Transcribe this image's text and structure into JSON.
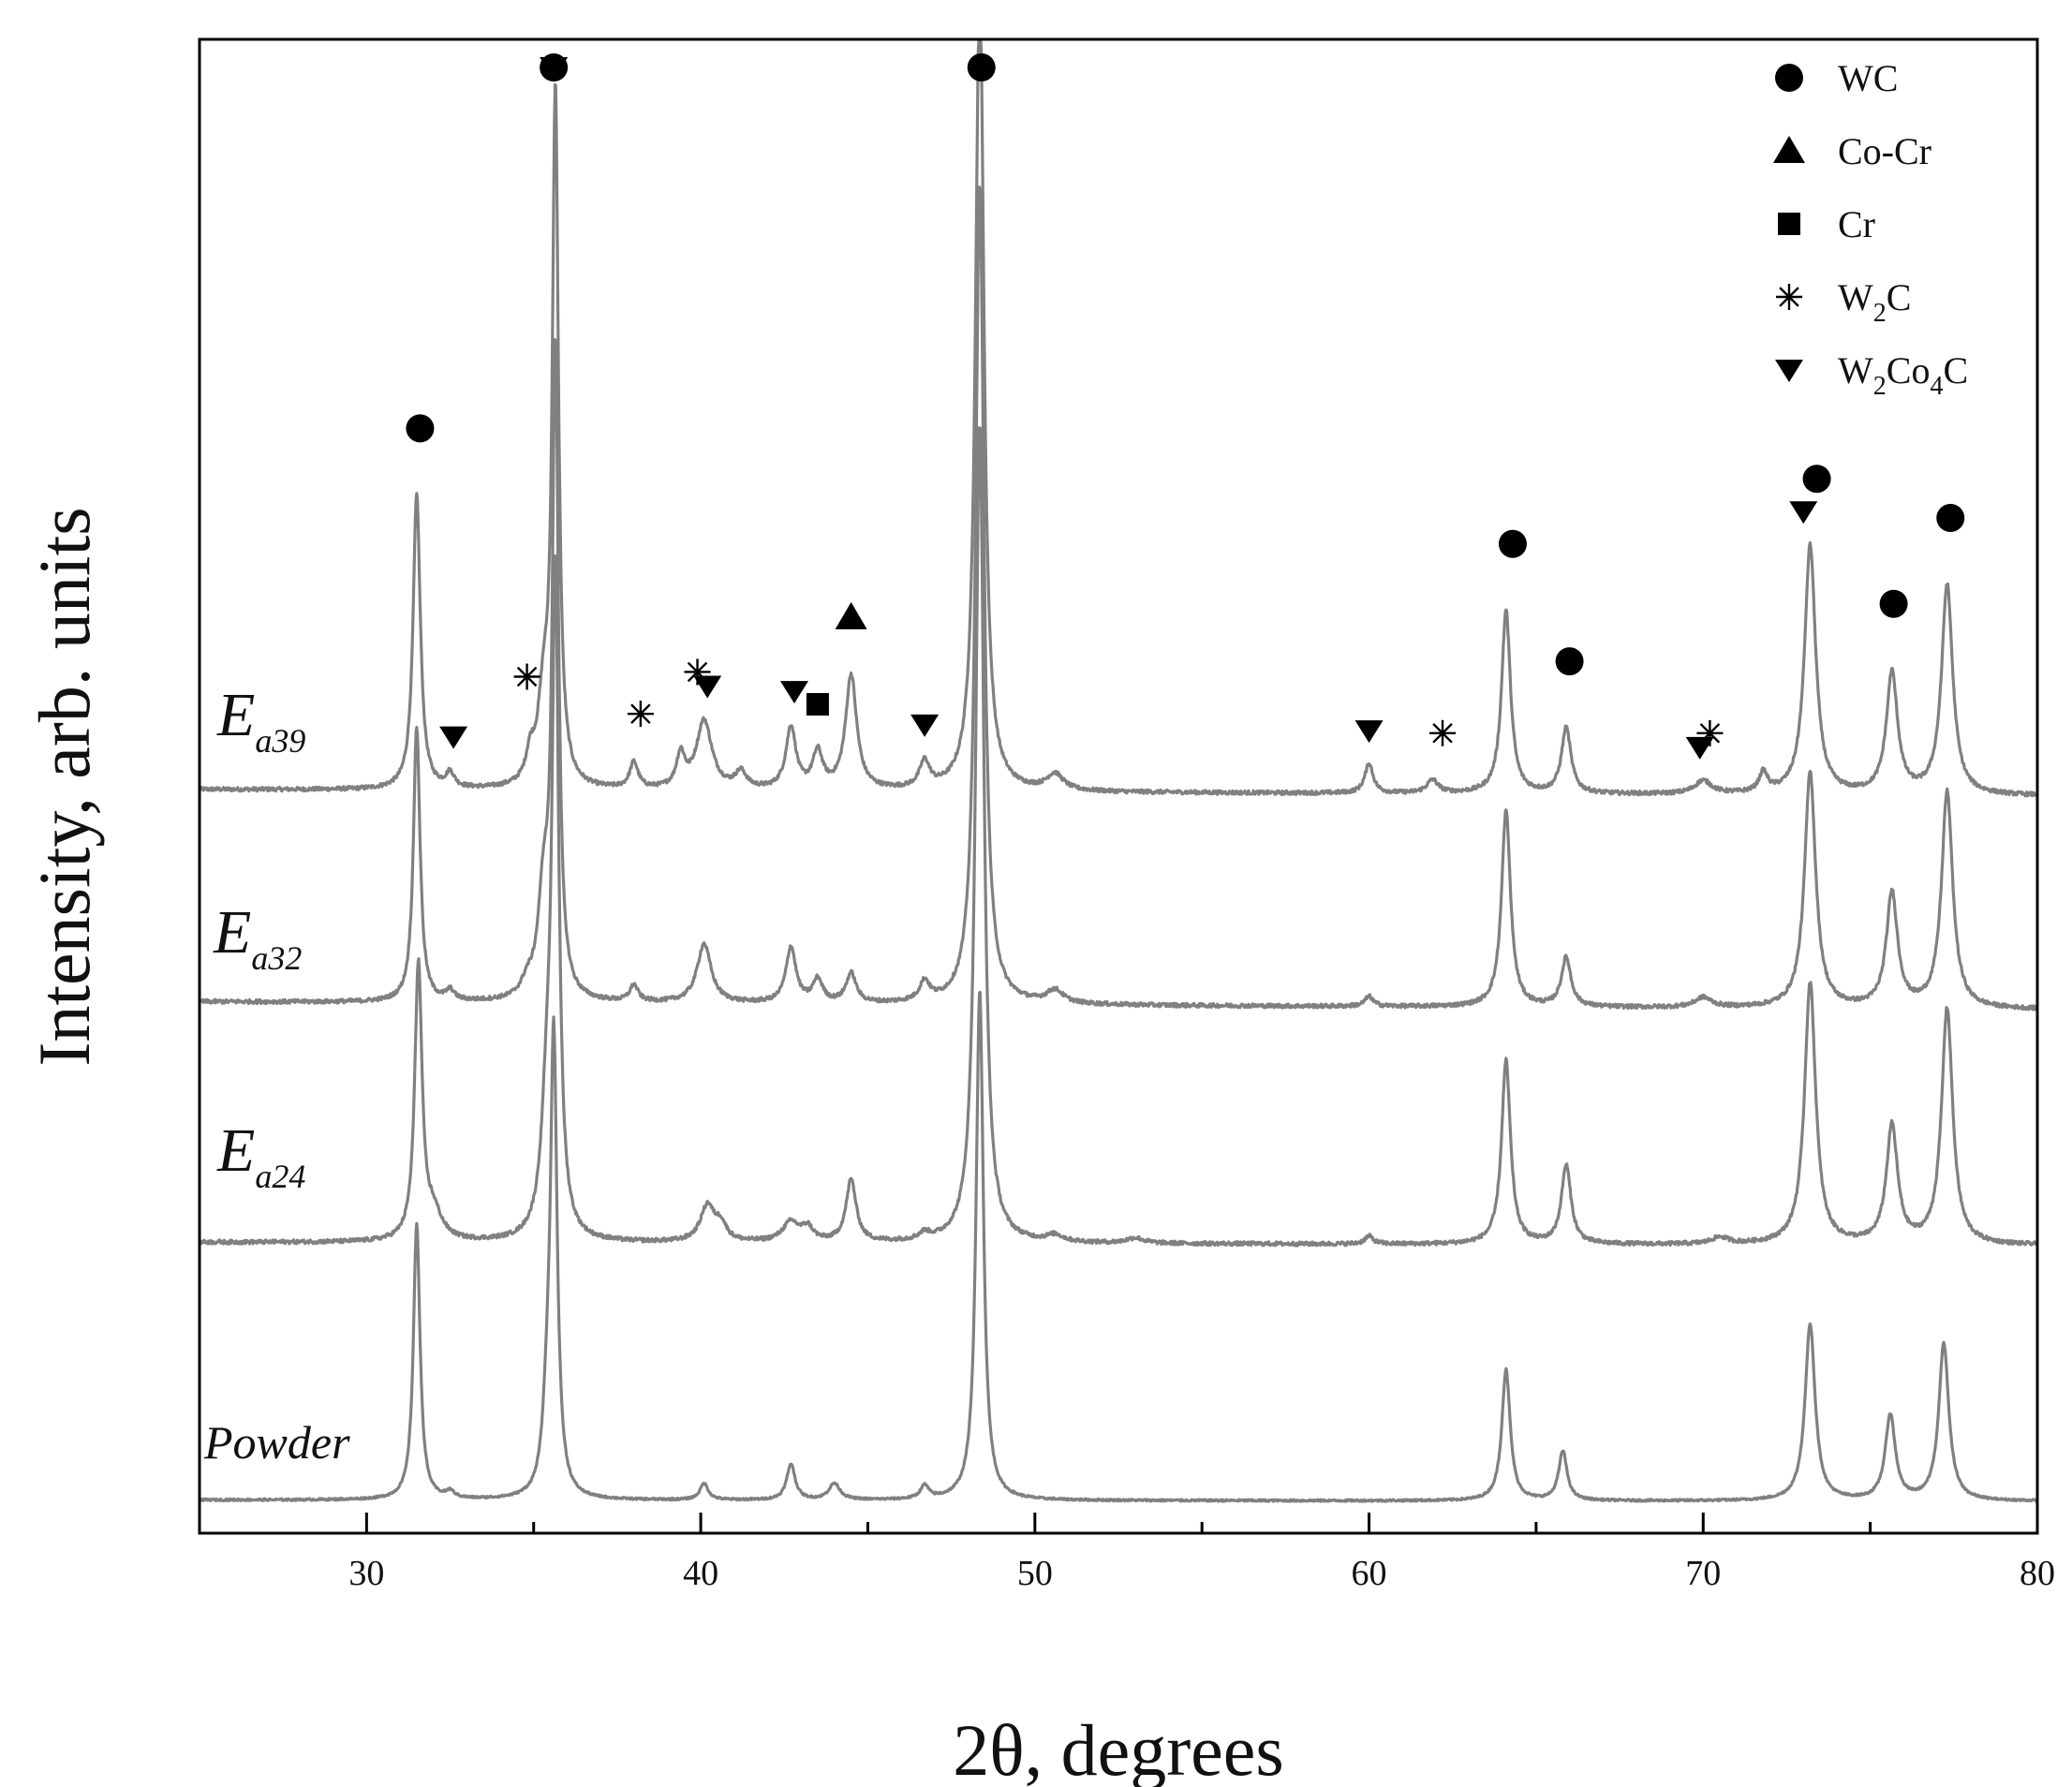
{
  "chart_data": {
    "type": "line",
    "title": "",
    "xlabel": "2θ, degrees",
    "ylabel": "Intensity, arb. units",
    "xlim": [
      25,
      80
    ],
    "xticks": [
      30,
      40,
      50,
      60,
      70,
      80
    ],
    "x_tick_labels": [
      "30",
      "40",
      "50",
      "60",
      "70",
      "80"
    ],
    "y_ticks_shown": false,
    "grid": false,
    "line_color": "#808080",
    "legend_position": "top-right",
    "legend": [
      {
        "phase": "WC",
        "marker": "circle",
        "sub": ""
      },
      {
        "phase": "Co-Cr",
        "marker": "triangle-up",
        "sub": ""
      },
      {
        "phase": "Cr",
        "marker": "square",
        "sub": ""
      },
      {
        "phase": "W2C",
        "marker": "asterisk",
        "base": "W",
        "sub": "2",
        "tail": "C"
      },
      {
        "phase": "W2Co4C",
        "marker": "triangle-down",
        "base": "W",
        "sub": "2",
        "mid": "Co",
        "sub2": "4",
        "tail": "C"
      }
    ],
    "series": [
      {
        "name": "E a39",
        "label_main": "E",
        "label_sub": "a39",
        "baseline": 2,
        "noise": 0.03,
        "peaks": [
          [
            31.5,
            4.5,
            0.13
          ],
          [
            32.5,
            0.22,
            0.15
          ],
          [
            34.9,
            0.4,
            0.15
          ],
          [
            35.65,
            10.5,
            0.11
          ],
          [
            35.3,
            1.2,
            0.2
          ],
          [
            38.0,
            0.4,
            0.15
          ],
          [
            39.4,
            0.5,
            0.15
          ],
          [
            40.1,
            1.05,
            0.28
          ],
          [
            41.2,
            0.25,
            0.2
          ],
          [
            42.7,
            0.95,
            0.18
          ],
          [
            43.5,
            0.55,
            0.18
          ],
          [
            44.5,
            1.75,
            0.2
          ],
          [
            46.7,
            0.4,
            0.18
          ],
          [
            48.35,
            12.5,
            0.15
          ],
          [
            50.6,
            0.25,
            0.3
          ],
          [
            60.0,
            0.45,
            0.15
          ],
          [
            61.9,
            0.2,
            0.2
          ],
          [
            64.1,
            2.8,
            0.16
          ],
          [
            65.9,
            1.0,
            0.17
          ],
          [
            70.0,
            0.2,
            0.3
          ],
          [
            71.8,
            0.3,
            0.15
          ],
          [
            73.2,
            3.8,
            0.2
          ],
          [
            75.65,
            1.85,
            0.2
          ],
          [
            77.3,
            3.2,
            0.2
          ]
        ]
      },
      {
        "name": "E a32",
        "label_main": "E",
        "label_sub": "a32",
        "baseline": 1,
        "noise": 0.03,
        "peaks": [
          [
            31.5,
            4.2,
            0.12
          ],
          [
            32.5,
            0.15,
            0.15
          ],
          [
            34.8,
            0.2,
            0.2
          ],
          [
            35.65,
            9.8,
            0.11
          ],
          [
            35.3,
            1.5,
            0.2
          ],
          [
            38.0,
            0.25,
            0.15
          ],
          [
            40.1,
            0.9,
            0.25
          ],
          [
            42.7,
            0.85,
            0.18
          ],
          [
            43.5,
            0.35,
            0.18
          ],
          [
            44.5,
            0.45,
            0.18
          ],
          [
            46.7,
            0.3,
            0.18
          ],
          [
            48.35,
            12.5,
            0.15
          ],
          [
            50.6,
            0.2,
            0.3
          ],
          [
            60.0,
            0.15,
            0.15
          ],
          [
            64.1,
            3.0,
            0.16
          ],
          [
            65.9,
            0.75,
            0.17
          ],
          [
            70.0,
            0.15,
            0.3
          ],
          [
            73.2,
            3.6,
            0.2
          ],
          [
            75.65,
            1.75,
            0.2
          ],
          [
            77.3,
            3.3,
            0.2
          ]
        ]
      },
      {
        "name": "E a24",
        "label_main": "E",
        "label_sub": "a24",
        "baseline": 0,
        "noise": 0.03,
        "peaks": [
          [
            31.55,
            4.2,
            0.13
          ],
          [
            32.0,
            0.4,
            0.3
          ],
          [
            35.65,
            9.8,
            0.12
          ],
          [
            35.4,
            1.8,
            0.2
          ],
          [
            40.2,
            0.55,
            0.25
          ],
          [
            40.6,
            0.25,
            0.2
          ],
          [
            42.7,
            0.3,
            0.3
          ],
          [
            43.2,
            0.2,
            0.2
          ],
          [
            44.5,
            0.95,
            0.18
          ],
          [
            46.7,
            0.1,
            0.2
          ],
          [
            48.35,
            12.5,
            0.15
          ],
          [
            50.6,
            0.1,
            0.3
          ],
          [
            53.0,
            0.08,
            0.3
          ],
          [
            60.0,
            0.12,
            0.15
          ],
          [
            64.1,
            2.8,
            0.16
          ],
          [
            65.9,
            1.2,
            0.17
          ],
          [
            70.5,
            0.1,
            0.3
          ],
          [
            73.2,
            4.0,
            0.2
          ],
          [
            75.65,
            1.8,
            0.2
          ],
          [
            77.3,
            3.6,
            0.2
          ]
        ]
      },
      {
        "name": "Powder",
        "label_main": "Powder",
        "label_sub": "",
        "baseline": -1,
        "noise": 0.015,
        "peaks": [
          [
            31.5,
            4.2,
            0.12
          ],
          [
            32.5,
            0.1,
            0.15
          ],
          [
            35.6,
            7.0,
            0.12
          ],
          [
            35.4,
            1.0,
            0.15
          ],
          [
            40.1,
            0.25,
            0.15
          ],
          [
            42.7,
            0.55,
            0.15
          ],
          [
            44.0,
            0.25,
            0.2
          ],
          [
            46.7,
            0.2,
            0.15
          ],
          [
            48.35,
            7.8,
            0.13
          ],
          [
            64.1,
            2.0,
            0.15
          ],
          [
            65.8,
            0.75,
            0.15
          ],
          [
            73.2,
            2.7,
            0.18
          ],
          [
            75.6,
            1.3,
            0.18
          ],
          [
            77.2,
            2.4,
            0.18
          ]
        ]
      }
    ],
    "phase_markers": [
      {
        "phase": "WC",
        "x": 31.6
      },
      {
        "phase": "WC",
        "x": 35.6
      },
      {
        "phase": "WC",
        "x": 48.4
      },
      {
        "phase": "WC",
        "x": 64.3
      },
      {
        "phase": "WC",
        "x": 66.0
      },
      {
        "phase": "WC",
        "x": 73.4
      },
      {
        "phase": "WC",
        "x": 75.7
      },
      {
        "phase": "WC",
        "x": 77.4
      },
      {
        "phase": "Co-Cr",
        "x": 44.5
      },
      {
        "phase": "Cr",
        "x": 43.5
      },
      {
        "phase": "W2C",
        "x": 34.8
      },
      {
        "phase": "W2C",
        "x": 38.2
      },
      {
        "phase": "W2C",
        "x": 39.9
      },
      {
        "phase": "W2C",
        "x": 62.2
      },
      {
        "phase": "W2C",
        "x": 70.2
      },
      {
        "phase": "W2Co4C",
        "x": 32.6
      },
      {
        "phase": "W2Co4C",
        "x": 35.6
      },
      {
        "phase": "W2Co4C",
        "x": 40.2
      },
      {
        "phase": "W2Co4C",
        "x": 42.8
      },
      {
        "phase": "W2Co4C",
        "x": 46.7
      },
      {
        "phase": "W2Co4C",
        "x": 60.0
      },
      {
        "phase": "W2Co4C",
        "x": 69.9
      },
      {
        "phase": "W2Co4C",
        "x": 73.0
      }
    ]
  }
}
